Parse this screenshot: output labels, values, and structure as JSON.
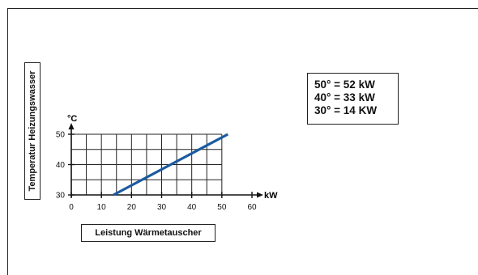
{
  "chart_data": {
    "type": "line",
    "ylabel": "Temperatur Heizungswasser",
    "xlabel": "Leistung Wärmetauscher",
    "x_unit": "kW",
    "y_unit": "°C",
    "xlim": [
      0,
      60
    ],
    "ylim": [
      30,
      50
    ],
    "x_ticks": [
      0,
      10,
      20,
      30,
      40,
      50,
      60
    ],
    "y_ticks": [
      30,
      40,
      50
    ],
    "grid": true,
    "series": [
      {
        "points": [
          {
            "x": 14,
            "y": 30
          },
          {
            "x": 33,
            "y": 40
          },
          {
            "x": 52,
            "y": 50
          }
        ]
      }
    ],
    "line_color": "#1b5aa0",
    "annotations": [
      "50° = 52 kW",
      "40° = 33 kW",
      "30° = 14 KW"
    ]
  }
}
